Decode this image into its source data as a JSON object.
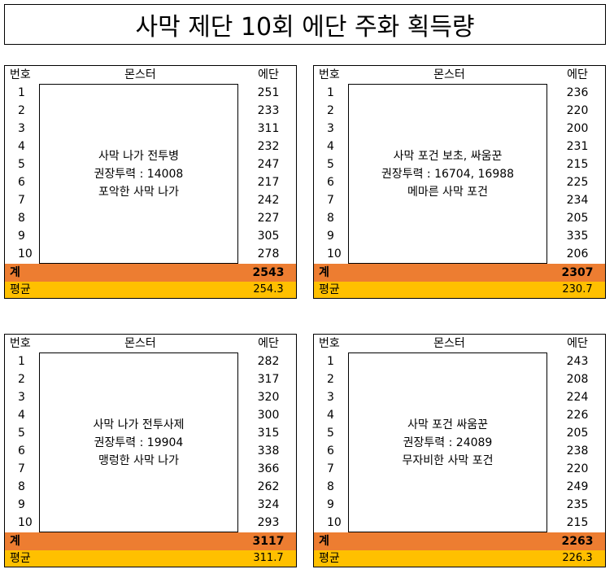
{
  "title": "사막 제단 10회 에단 주화 획득량",
  "headers": {
    "no": "번호",
    "monster": "몬스터",
    "value": "에단"
  },
  "labels": {
    "sum": "계",
    "avg": "평균"
  },
  "colors": {
    "sum_bg": "#ED7D31",
    "avg_bg": "#FFC000"
  },
  "panels": [
    {
      "numbers": [
        "1",
        "2",
        "3",
        "4",
        "5",
        "6",
        "7",
        "8",
        "9",
        "10"
      ],
      "values": [
        "251",
        "233",
        "311",
        "232",
        "247",
        "217",
        "242",
        "227",
        "305",
        "278"
      ],
      "monster": [
        "사막 나가 전투병",
        "권장투력 : 14008",
        "포악한 사막 나가"
      ],
      "sum": "2543",
      "avg": "254.3"
    },
    {
      "numbers": [
        "1",
        "2",
        "3",
        "4",
        "5",
        "6",
        "7",
        "8",
        "9",
        "10"
      ],
      "values": [
        "236",
        "220",
        "200",
        "231",
        "215",
        "225",
        "234",
        "205",
        "335",
        "206"
      ],
      "monster": [
        "사막 포건 보초, 싸움꾼",
        "권장투력 : 16704, 16988",
        "메마른 사막 포건"
      ],
      "sum": "2307",
      "avg": "230.7"
    },
    {
      "numbers": [
        "1",
        "2",
        "3",
        "4",
        "5",
        "6",
        "7",
        "8",
        "9",
        "10"
      ],
      "values": [
        "282",
        "317",
        "320",
        "300",
        "315",
        "338",
        "366",
        "262",
        "324",
        "293"
      ],
      "monster": [
        "사막 나가 전투사제",
        "권장투력 : 19904",
        "맹렁한 사막 나가"
      ],
      "sum": "3117",
      "avg": "311.7"
    },
    {
      "numbers": [
        "1",
        "2",
        "3",
        "4",
        "5",
        "6",
        "7",
        "8",
        "9",
        "10"
      ],
      "values": [
        "243",
        "208",
        "224",
        "226",
        "205",
        "238",
        "220",
        "249",
        "235",
        "215"
      ],
      "monster": [
        "사막 포건 싸움꾼",
        "권장투력 : 24089",
        "무자비한 사막 포건"
      ],
      "sum": "2263",
      "avg": "226.3"
    }
  ]
}
